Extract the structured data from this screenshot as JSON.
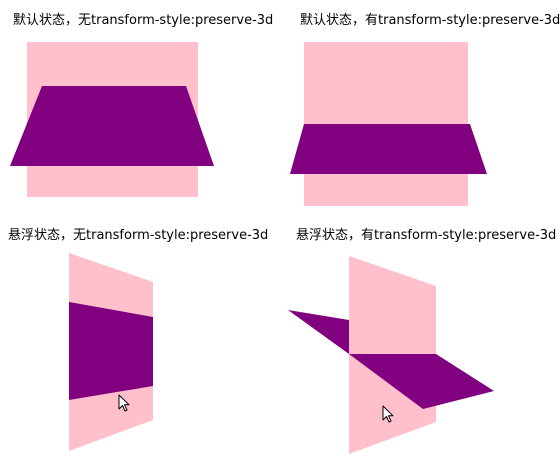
{
  "colors": {
    "back_plane": "#ffc0cb",
    "flipping_plane": "#800080",
    "cursor_fill": "#ffffff",
    "cursor_stroke": "#000000"
  },
  "panels": [
    {
      "caption": "默认状态，无transform-style:preserve-3d"
    },
    {
      "caption": "默认状态，有transform-style:preserve-3d"
    },
    {
      "caption": "悬浮状态，无transform-style:preserve-3d"
    },
    {
      "caption": "悬浮状态，有transform-style:preserve-3d"
    }
  ],
  "cursor_icon": "arrow-pointer-icon"
}
